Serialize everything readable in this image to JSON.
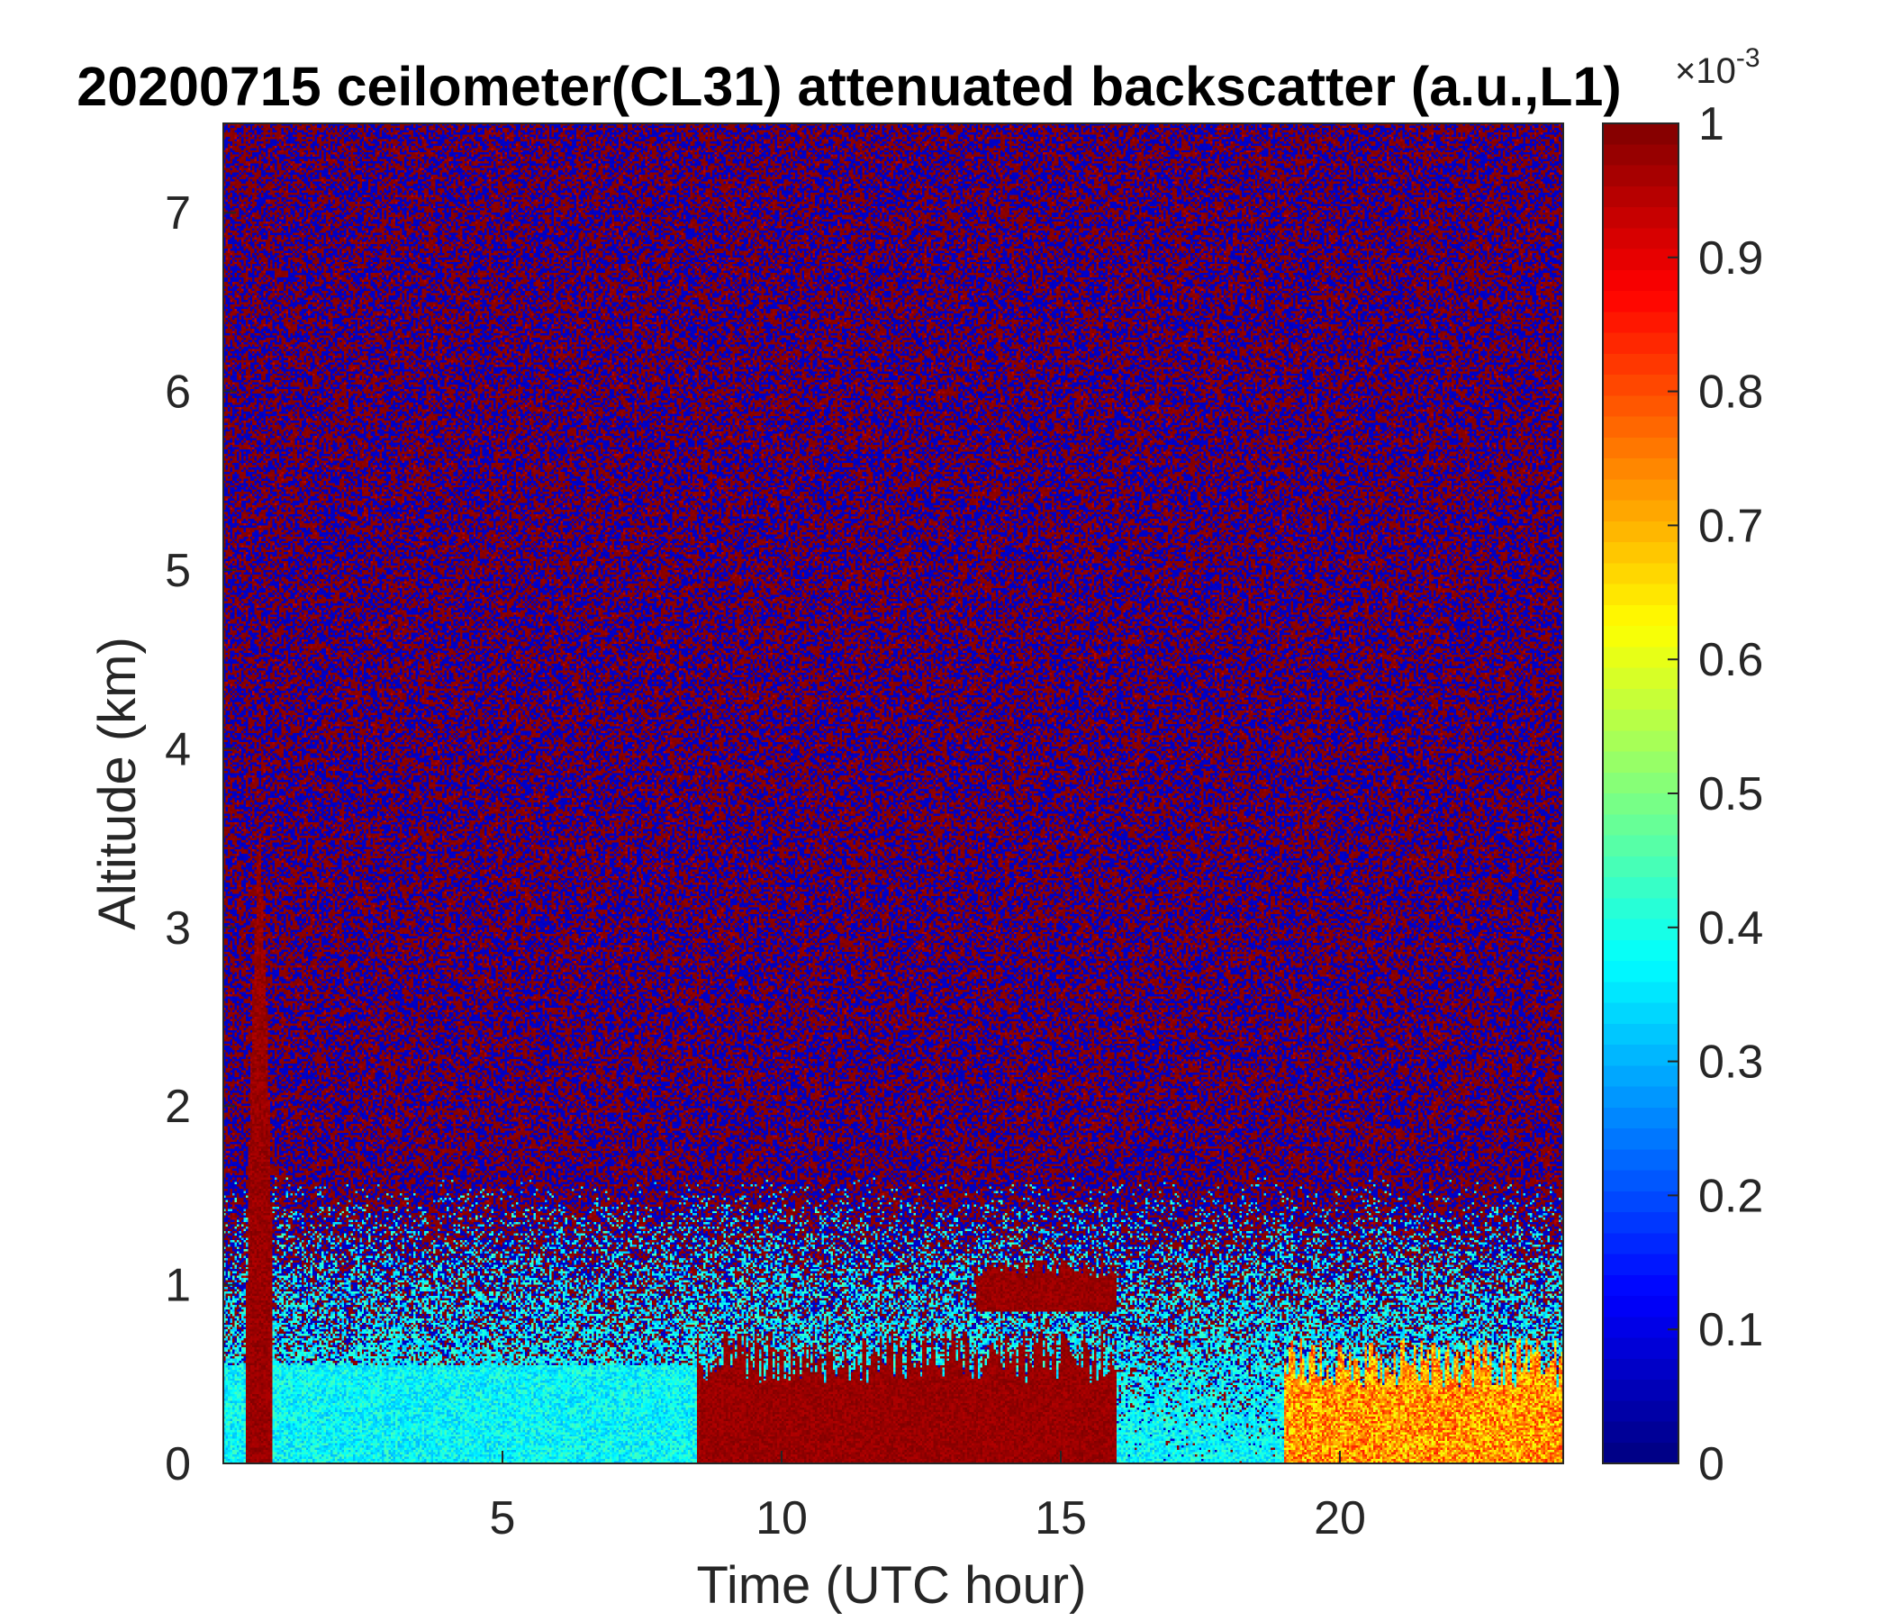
{
  "chart_data": {
    "type": "heatmap",
    "title": "20200715 ceilometer(CL31) attenuated backscatter (a.u.,L1)",
    "xlabel": "Time (UTC hour)",
    "ylabel": "Altitude (km)",
    "xlim": [
      0,
      24
    ],
    "ylim": [
      0,
      7.5
    ],
    "xticks": [
      5,
      10,
      15,
      20
    ],
    "yticks": [
      0,
      1,
      2,
      3,
      4,
      5,
      6,
      7
    ],
    "colorbar": {
      "colormap": "jet",
      "clim": [
        0,
        1
      ],
      "exponent_label": "×10",
      "exponent_power": "-3",
      "ticks": [
        "0",
        "0.1",
        "0.2",
        "0.3",
        "0.4",
        "0.5",
        "0.6",
        "0.7",
        "0.8",
        "0.9",
        "1"
      ]
    },
    "features": [
      {
        "feature": "aerosol-layer",
        "x_range": [
          0,
          8.5
        ],
        "altitude_range": [
          0,
          0.55
        ],
        "value_range": [
          0.3,
          0.45
        ]
      },
      {
        "feature": "cloud-plume",
        "x_range": [
          0.4,
          0.9
        ],
        "altitude_range": [
          0,
          3.6
        ],
        "value": 1.0
      },
      {
        "feature": "boundary-layer",
        "x_range": [
          8.5,
          16
        ],
        "altitude_range": [
          0,
          0.75
        ],
        "value": 1.0
      },
      {
        "feature": "cloud-layer",
        "x_range": [
          13.5,
          16
        ],
        "altitude_range": [
          0.85,
          1.15
        ],
        "value": 1.0
      },
      {
        "feature": "boundary-layer",
        "x_range": [
          19,
          24
        ],
        "altitude_range": [
          0,
          0.7
        ],
        "value_range": [
          0.6,
          0.85
        ]
      },
      {
        "feature": "noise-background",
        "x_range": [
          0,
          24
        ],
        "altitude_range": [
          1.5,
          7.5
        ],
        "value_range": [
          0,
          1
        ]
      }
    ]
  }
}
